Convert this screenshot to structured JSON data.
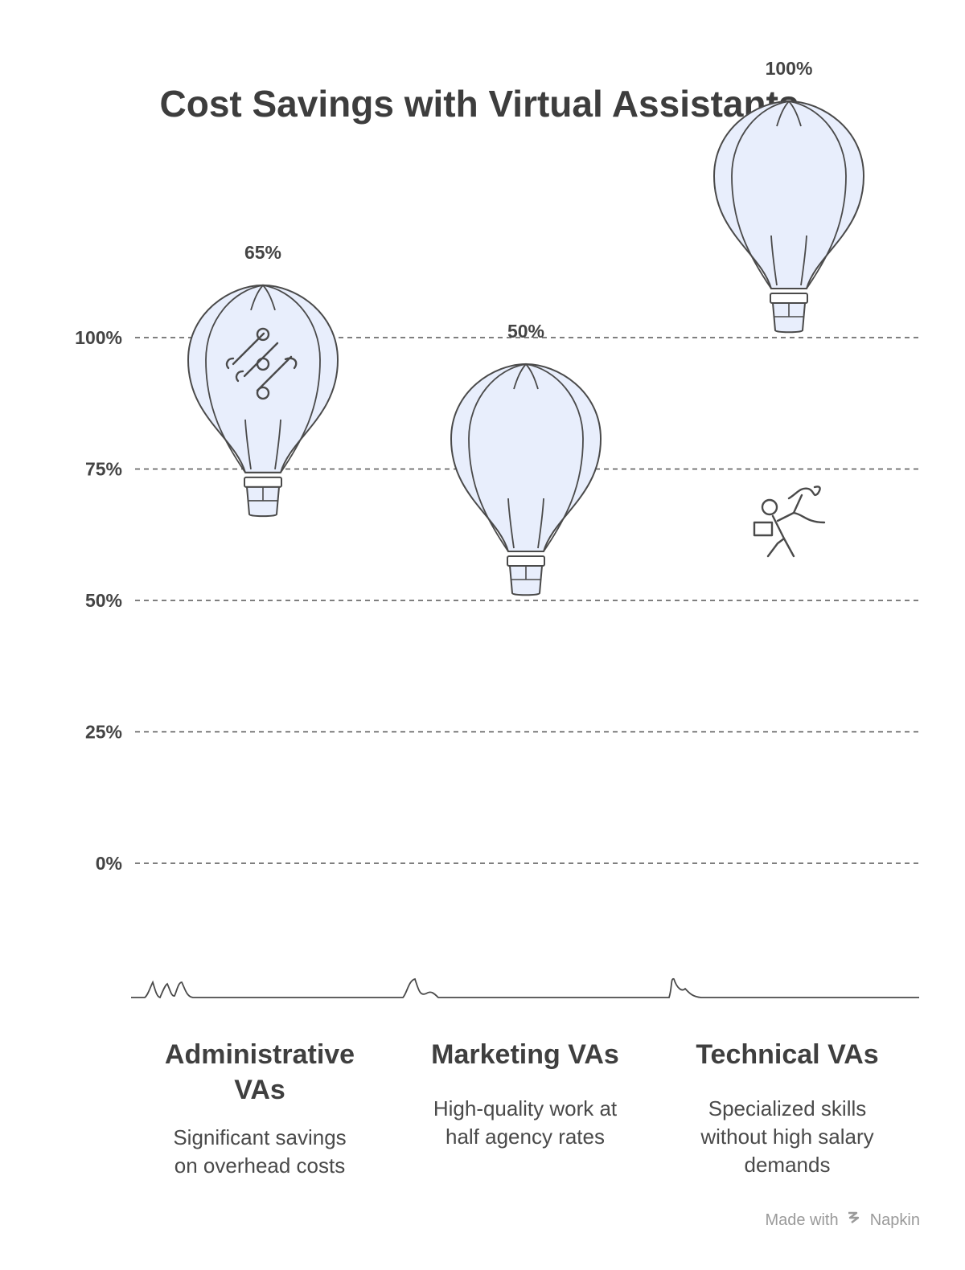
{
  "chart_data": {
    "type": "bar",
    "title": "Cost Savings with Virtual Assistants",
    "categories": [
      "Administrative VAs",
      "Marketing VAs",
      "Technical VAs"
    ],
    "values": [
      65,
      50,
      100
    ],
    "value_labels": [
      "65%",
      "50%",
      "100%"
    ],
    "descriptions": [
      "Significant savings on overhead costs",
      "High-quality work at half agency rates",
      "Specialized skills without high salary demands"
    ],
    "y_ticks": [
      0,
      25,
      50,
      75,
      100
    ],
    "y_tick_labels": [
      "0%",
      "25%",
      "50%",
      "75%",
      "100%"
    ],
    "ylim": [
      0,
      100
    ],
    "grid": true,
    "marker": "hot-air-balloon",
    "icons": [
      "document-roll-icon",
      "delivery-person-icon",
      "engineer-database-icon"
    ],
    "colors": {
      "balloon_fill": "#e8eefc",
      "stroke": "#4a4a4a",
      "grid": "#555555"
    }
  },
  "footer": {
    "text": "Made with",
    "brand": "Napkin"
  }
}
